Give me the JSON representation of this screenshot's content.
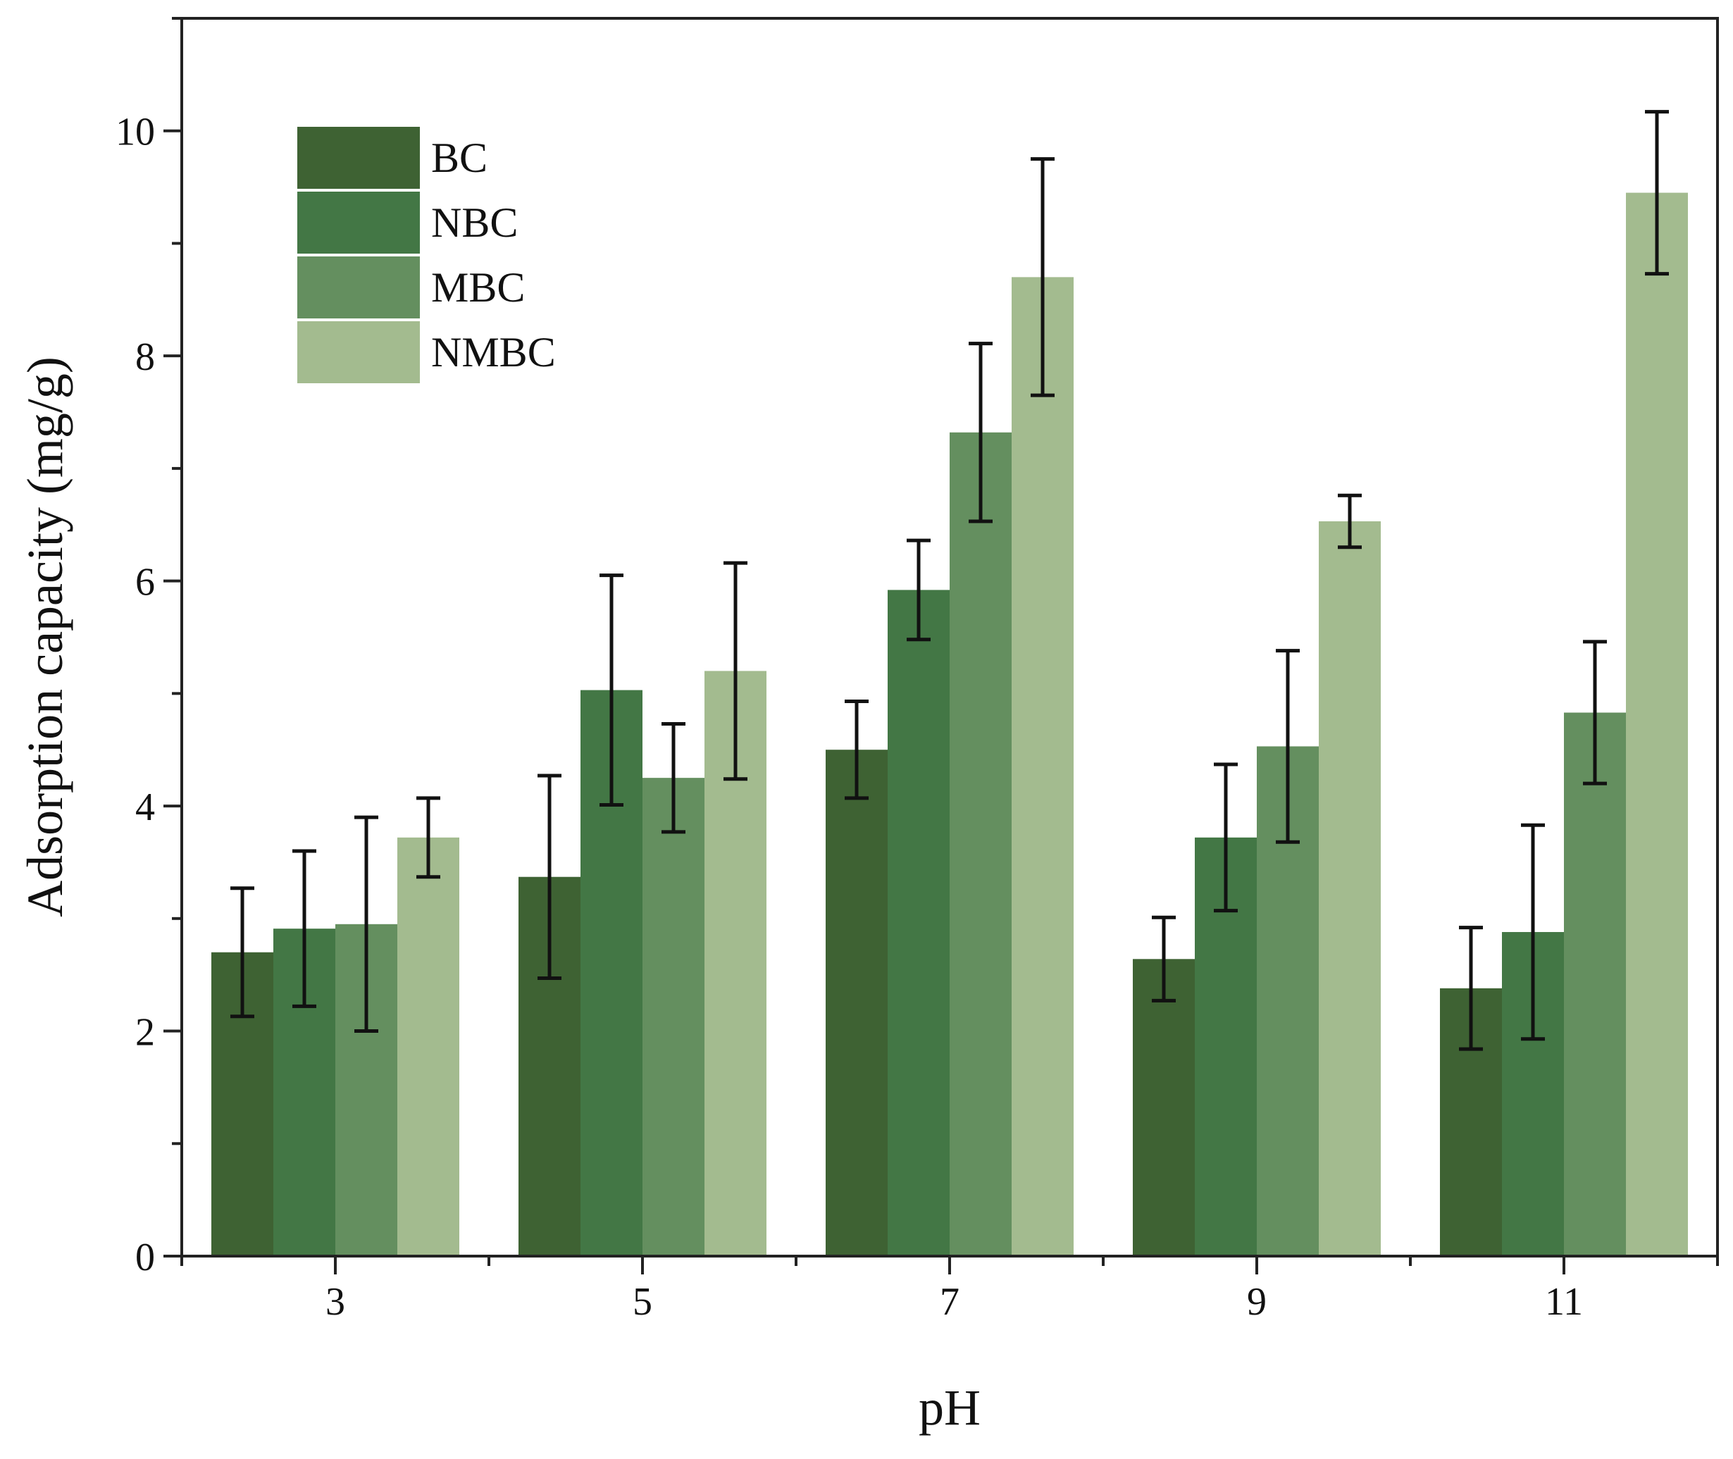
{
  "chart_data": {
    "type": "bar",
    "title": "",
    "xlabel": "pH",
    "ylabel": "Adsorption capacity (mg/g)",
    "categories": [
      "3",
      "5",
      "7",
      "9",
      "11"
    ],
    "ylim": [
      0,
      11
    ],
    "yticks": [
      0,
      2,
      4,
      6,
      8,
      10
    ],
    "yticklabels": [
      "0",
      "2",
      "4",
      "6",
      "8",
      "10"
    ],
    "grid": false,
    "legend_position": "top-left",
    "series": [
      {
        "name": "BC",
        "color": "#3e6233",
        "values": [
          2.7,
          3.37,
          4.5,
          2.64,
          2.38
        ],
        "errors": [
          0.57,
          0.9,
          0.43,
          0.37,
          0.54
        ]
      },
      {
        "name": "NBC",
        "color": "#437745",
        "values": [
          2.91,
          5.03,
          5.92,
          3.72,
          2.88
        ],
        "errors": [
          0.69,
          1.02,
          0.44,
          0.65,
          0.95
        ]
      },
      {
        "name": "MBC",
        "color": "#648f5f",
        "values": [
          2.95,
          4.25,
          7.32,
          4.53,
          4.83
        ],
        "errors": [
          0.95,
          0.48,
          0.79,
          0.85,
          0.63
        ]
      },
      {
        "name": "NMBC",
        "color": "#a3bb8f",
        "values": [
          3.72,
          5.2,
          8.7,
          6.53,
          9.45
        ],
        "errors": [
          0.35,
          0.96,
          1.05,
          0.23,
          0.72
        ]
      }
    ]
  }
}
